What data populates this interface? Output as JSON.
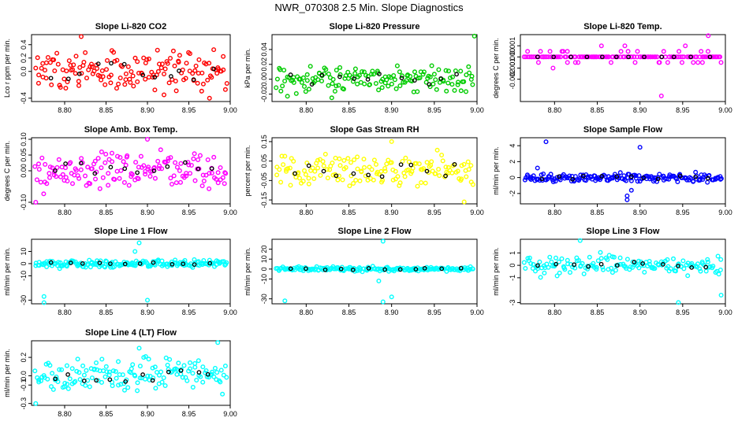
{
  "title": "NWR_070308  2.5 Min. Slope Diagnostics",
  "colors": {
    "black": "#000000"
  },
  "chart_data": [
    {
      "type": "scatter",
      "title": "Slope Li-820 CO2",
      "ylabel": "Lco r ppm per min.",
      "color": "#ff0000",
      "xlim": [
        8.76,
        9.0
      ],
      "ylim": [
        -0.45,
        0.55
      ],
      "xticks": [
        "8.80",
        "8.85",
        "8.90",
        "8.95",
        "9.00"
      ],
      "yticks": [
        {
          "v": -0.4,
          "label": "-0.4"
        },
        {
          "v": 0.0,
          "label": "0.0"
        },
        {
          "v": 0.2,
          "label": "0.2"
        },
        {
          "v": 0.4,
          "label": "0.4"
        }
      ],
      "seed": 1,
      "spread": 0.22,
      "n": 150,
      "outliers": [
        [
          8.82,
          0.52
        ],
        [
          8.975,
          -0.4
        ],
        [
          8.92,
          -0.35
        ]
      ]
    },
    {
      "type": "scatter",
      "title": "Slope Li-820 Pressure",
      "ylabel": "kPa per min.",
      "color": "#00cc00",
      "xlim": [
        8.76,
        9.0
      ],
      "ylim": [
        -0.03,
        0.06
      ],
      "xticks": [
        "8.80",
        "8.85",
        "8.90",
        "8.95",
        "9.00"
      ],
      "yticks": [
        {
          "v": -0.02,
          "label": "-0.02"
        },
        {
          "v": 0.0,
          "label": "0.00"
        },
        {
          "v": 0.02,
          "label": "0.02"
        },
        {
          "v": 0.04,
          "label": "0.04"
        }
      ],
      "seed": 2,
      "spread": 0.012,
      "n": 150,
      "outliers": [
        [
          8.997,
          0.058
        ],
        [
          8.83,
          -0.025
        ]
      ]
    },
    {
      "type": "scatter",
      "title": "Slope Li-820 Temp.",
      "ylabel": "degrees C per min.",
      "color": "#ff00ff",
      "xlim": [
        8.76,
        9.0
      ],
      "ylim": [
        -0.004,
        0.002
      ],
      "xticks": [
        "8.80",
        "8.85",
        "8.90",
        "8.95",
        "9.00"
      ],
      "yticks": [
        {
          "v": -0.002,
          "label": "-0.002"
        },
        {
          "v": -0.001,
          "label": "-0.001"
        },
        {
          "v": 0.0,
          "label": "0.000"
        },
        {
          "v": 0.001,
          "label": "0.001"
        }
      ],
      "seed": 3,
      "spread": 0.0006,
      "n": 150,
      "quantized": 0.0005,
      "outliers": [
        [
          8.98,
          0.0019
        ],
        [
          8.925,
          -0.0035
        ]
      ]
    },
    {
      "type": "scatter",
      "title": "Slope Amb. Box Temp.",
      "ylabel": "degrees C per min.",
      "color": "#ff00ff",
      "xlim": [
        8.76,
        9.0
      ],
      "ylim": [
        -0.105,
        0.105
      ],
      "xticks": [
        "8.80",
        "8.85",
        "8.90",
        "8.95",
        "9.00"
      ],
      "yticks": [
        {
          "v": -0.1,
          "label": "-0.10"
        },
        {
          "v": 0.0,
          "label": "0.00"
        },
        {
          "v": 0.05,
          "label": "0.05"
        },
        {
          "v": 0.1,
          "label": "0.10"
        }
      ],
      "seed": 4,
      "spread": 0.045,
      "n": 150,
      "outliers": [
        [
          8.9,
          0.1
        ],
        [
          8.765,
          -0.1
        ]
      ]
    },
    {
      "type": "scatter",
      "title": "Slope Gas Stream RH",
      "ylabel": "percent per min.",
      "color": "#ffff00",
      "xlim": [
        8.76,
        9.0
      ],
      "ylim": [
        -0.17,
        0.17
      ],
      "xticks": [
        "8.80",
        "8.85",
        "8.90",
        "8.95",
        "9.00"
      ],
      "yticks": [
        {
          "v": -0.15,
          "label": "-0.15"
        },
        {
          "v": -0.05,
          "label": "-0.05"
        },
        {
          "v": 0.05,
          "label": "0.05"
        },
        {
          "v": 0.15,
          "label": "0.15"
        }
      ],
      "seed": 5,
      "spread": 0.06,
      "n": 150,
      "outliers": [
        [
          8.985,
          -0.16
        ],
        [
          8.9,
          0.15
        ]
      ]
    },
    {
      "type": "scatter",
      "title": "Slope Sample Flow",
      "ylabel": "ml/min per min.",
      "color": "#0000ff",
      "xlim": [
        8.76,
        9.0
      ],
      "ylim": [
        -3.3,
        5.0
      ],
      "xticks": [
        "8.80",
        "8.85",
        "8.90",
        "8.95",
        "9.00"
      ],
      "yticks": [
        {
          "v": -2,
          "label": "-2"
        },
        {
          "v": 0,
          "label": "0"
        },
        {
          "v": 2,
          "label": "2"
        },
        {
          "v": 4,
          "label": "4"
        }
      ],
      "seed": 6,
      "spread": 0.35,
      "n": 170,
      "outliers": [
        [
          8.79,
          4.5
        ],
        [
          8.9,
          3.8
        ],
        [
          8.885,
          -2.8
        ],
        [
          8.885,
          -2.3
        ],
        [
          8.78,
          1.2
        ],
        [
          8.89,
          -1.6
        ]
      ]
    },
    {
      "type": "scatter",
      "title": "Slope Line 1 Flow",
      "ylabel": "ml/min per min.",
      "color": "#00ffff",
      "xlim": [
        8.76,
        9.0
      ],
      "ylim": [
        -33,
        20
      ],
      "xticks": [
        "8.80",
        "8.85",
        "8.90",
        "8.95",
        "9.00"
      ],
      "yticks": [
        {
          "v": -30,
          "label": "-30"
        },
        {
          "v": -10,
          "label": "-10"
        },
        {
          "v": 0,
          "label": "0"
        },
        {
          "v": 10,
          "label": "10"
        }
      ],
      "seed": 7,
      "spread": 2.0,
      "n": 180,
      "outliers": [
        [
          8.89,
          17
        ],
        [
          8.775,
          -32
        ],
        [
          8.9,
          -30
        ],
        [
          8.775,
          -27
        ],
        [
          8.885,
          10
        ]
      ]
    },
    {
      "type": "scatter",
      "title": "Slope Line 2 Flow",
      "ylabel": "ml/min per min.",
      "color": "#00ffff",
      "xlim": [
        8.76,
        9.0
      ],
      "ylim": [
        -35,
        30
      ],
      "xticks": [
        "8.80",
        "8.85",
        "8.90",
        "8.95",
        "9.00"
      ],
      "yticks": [
        {
          "v": -30,
          "label": "-30"
        },
        {
          "v": -10,
          "label": "-10"
        },
        {
          "v": 0,
          "label": "0"
        },
        {
          "v": 10,
          "label": "10"
        },
        {
          "v": 20,
          "label": "20"
        }
      ],
      "seed": 8,
      "spread": 1.5,
      "n": 180,
      "outliers": [
        [
          8.89,
          28
        ],
        [
          8.775,
          -32
        ],
        [
          8.89,
          -33
        ],
        [
          8.9,
          -28
        ],
        [
          8.885,
          -12
        ]
      ]
    },
    {
      "type": "scatter",
      "title": "Slope Line 3 Flow",
      "ylabel": "ml/min per min.",
      "color": "#00ffff",
      "xlim": [
        8.76,
        9.0
      ],
      "ylim": [
        -3.1,
        2.1
      ],
      "xticks": [
        "8.80",
        "8.85",
        "8.90",
        "8.95",
        "9.00"
      ],
      "yticks": [
        {
          "v": -3,
          "label": "-3"
        },
        {
          "v": -1,
          "label": "-1"
        },
        {
          "v": 0,
          "label": "0"
        },
        {
          "v": 1,
          "label": "1"
        }
      ],
      "seed": 9,
      "spread": 0.55,
      "n": 150,
      "outliers": [
        [
          8.945,
          -3.0
        ],
        [
          8.83,
          2.0
        ],
        [
          8.995,
          -2.4
        ]
      ]
    },
    {
      "type": "scatter",
      "title": "Slope Line 4 (LT) Flow",
      "ylabel": "ml/min per min.",
      "color": "#00ffff",
      "xlim": [
        8.76,
        9.0
      ],
      "ylim": [
        -0.32,
        0.38
      ],
      "xticks": [
        "8.80",
        "8.85",
        "8.90",
        "8.95",
        "9.00"
      ],
      "yticks": [
        {
          "v": -0.3,
          "label": "-0.3"
        },
        {
          "v": -0.1,
          "label": "-0.1"
        },
        {
          "v": 0.0,
          "label": "0.0"
        },
        {
          "v": 0.2,
          "label": "0.2"
        }
      ],
      "seed": 10,
      "spread": 0.12,
      "n": 150,
      "outliers": [
        [
          8.985,
          0.36
        ],
        [
          8.765,
          -0.3
        ],
        [
          8.89,
          0.3
        ]
      ]
    }
  ]
}
